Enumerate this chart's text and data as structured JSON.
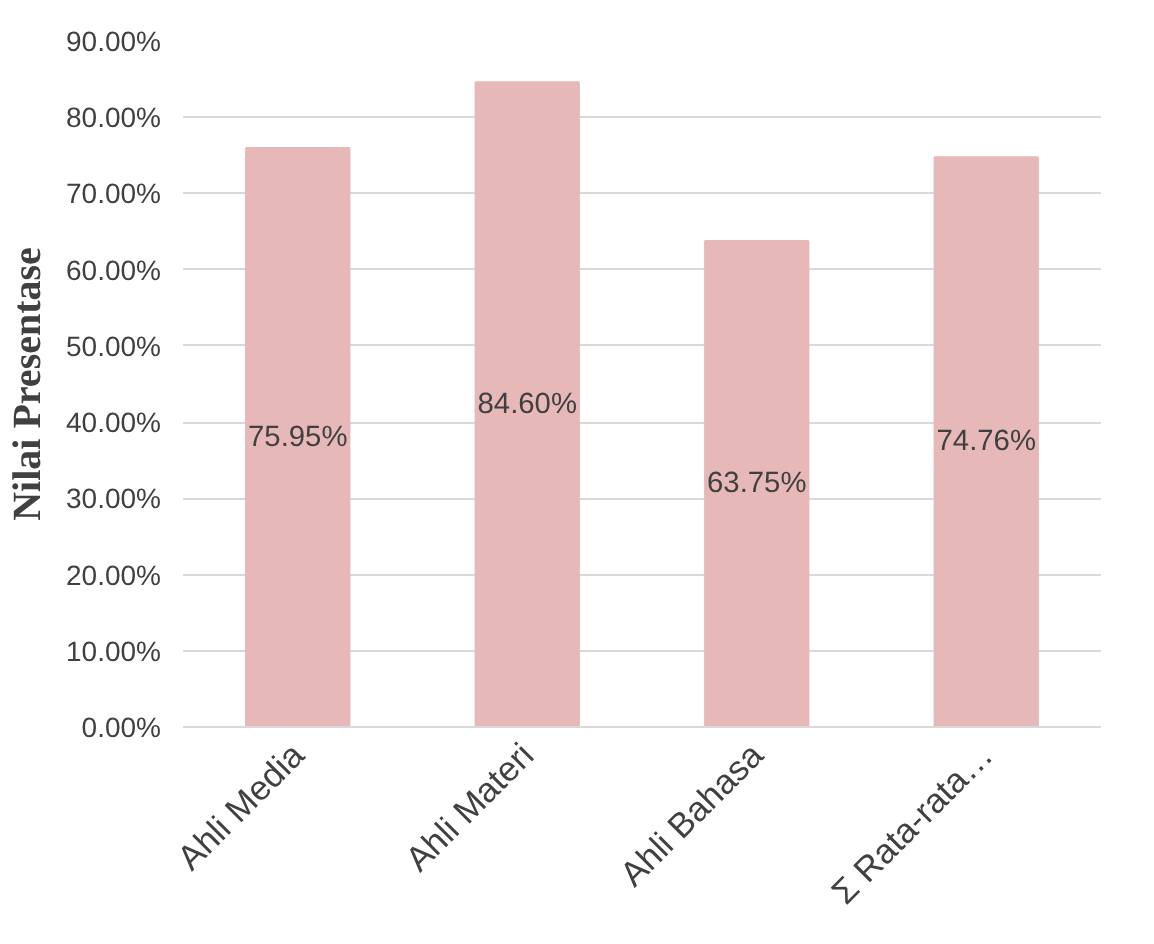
{
  "chart_data": {
    "type": "bar",
    "ylabel": "Nilai Presentase",
    "categories": [
      "Ahli Media",
      "Ahli Materi",
      "Ahli Bahasa",
      "Σ Rata-rata…"
    ],
    "values": [
      75.95,
      84.6,
      63.75,
      74.76
    ],
    "value_labels": [
      "75.95%",
      "84.60%",
      "63.75%",
      "74.76%"
    ],
    "color": "#e6b8b7",
    "ylim": [
      0,
      90
    ],
    "yticks": [
      {
        "value": 0,
        "label": "0.00%"
      },
      {
        "value": 10,
        "label": "10.00%"
      },
      {
        "value": 20,
        "label": "20.00%"
      },
      {
        "value": 30,
        "label": "30.00%"
      },
      {
        "value": 40,
        "label": "40.00%"
      },
      {
        "value": 50,
        "label": "50.00%"
      },
      {
        "value": 60,
        "label": "60.00%"
      },
      {
        "value": 70,
        "label": "70.00%"
      },
      {
        "value": 80,
        "label": "80.00%"
      },
      {
        "value": 90,
        "label": "90.00%"
      }
    ],
    "grid": "y"
  }
}
